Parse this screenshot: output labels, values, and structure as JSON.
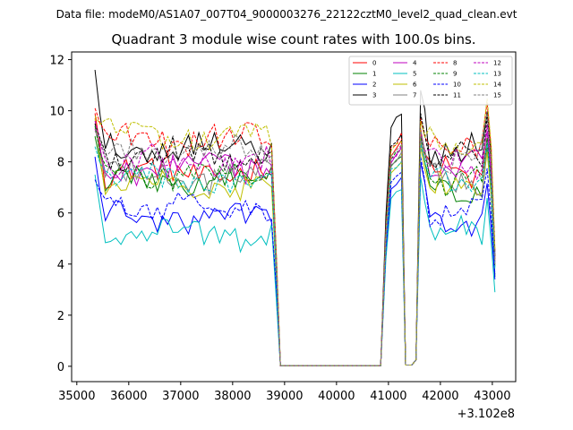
{
  "chart_data": {
    "type": "line",
    "suptitle": "Data file: modeM0/AS1A07_007T04_9000003276_22122cztM0_level2_quad_clean.evt",
    "title": "Quadrant 3 module wise count rates with 100.0s bins.",
    "xlabel": "",
    "ylabel": "",
    "x_offset_label": "+3.102e8",
    "xlim": [
      34900,
      43450
    ],
    "ylim": [
      -0.6,
      12.3
    ],
    "xticks": [
      35000,
      36000,
      37000,
      38000,
      39000,
      40000,
      41000,
      42000,
      43000
    ],
    "xtick_labels": [
      "35000",
      "36000",
      "37000",
      "38000",
      "39000",
      "40000",
      "41000",
      "42000",
      "43000"
    ],
    "yticks": [
      0,
      2,
      4,
      6,
      8,
      10,
      12
    ],
    "ytick_labels": [
      "0",
      "2",
      "4",
      "6",
      "8",
      "10",
      "12"
    ],
    "legend_position": "top-right",
    "series": [
      {
        "name": "0",
        "color": "#ff0000",
        "dashed": false,
        "start": 9.9,
        "level": 7.6,
        "end": 4.2,
        "gap_peak": 8.7,
        "hump": 9.3
      },
      {
        "name": "1",
        "color": "#008000",
        "dashed": false,
        "start": 9.0,
        "level": 7.2,
        "end": 3.5,
        "gap_peak": 8.3,
        "hump": 8.9
      },
      {
        "name": "2",
        "color": "#0000ff",
        "dashed": false,
        "start": 8.2,
        "level": 5.8,
        "end": 3.4,
        "gap_peak": 7.4,
        "hump": 8.0
      },
      {
        "name": "3",
        "color": "#000000",
        "dashed": false,
        "start": 11.6,
        "level": 8.6,
        "end": 4.3,
        "gap_peak": 9.8,
        "hump": 10.8
      },
      {
        "name": "4",
        "color": "#bf00bf",
        "dashed": false,
        "start": 9.3,
        "level": 7.8,
        "end": 4.0,
        "gap_peak": 8.4,
        "hump": 9.1
      },
      {
        "name": "5",
        "color": "#00bfbf",
        "dashed": false,
        "start": 7.5,
        "level": 5.2,
        "end": 2.9,
        "gap_peak": 7.0,
        "hump": 7.4
      },
      {
        "name": "6",
        "color": "#bfbf00",
        "dashed": false,
        "start": 9.7,
        "level": 7.0,
        "end": 4.2,
        "gap_peak": 8.0,
        "hump": 8.6
      },
      {
        "name": "7",
        "color": "#808080",
        "dashed": false,
        "start": 9.5,
        "level": 7.4,
        "end": 4.1,
        "gap_peak": 8.3,
        "hump": 8.9
      },
      {
        "name": "8",
        "color": "#ff0000",
        "dashed": true,
        "start": 10.1,
        "level": 8.9,
        "end": 4.5,
        "gap_peak": 9.0,
        "hump": 9.7
      },
      {
        "name": "9",
        "color": "#008000",
        "dashed": true,
        "start": 9.4,
        "level": 7.5,
        "end": 3.9,
        "gap_peak": 8.5,
        "hump": 9.0
      },
      {
        "name": "10",
        "color": "#0000ff",
        "dashed": true,
        "start": 7.3,
        "level": 6.3,
        "end": 3.6,
        "gap_peak": 7.6,
        "hump": 8.2
      },
      {
        "name": "11",
        "color": "#000000",
        "dashed": true,
        "start": 9.5,
        "level": 8.3,
        "end": 4.4,
        "gap_peak": 9.0,
        "hump": 9.9
      },
      {
        "name": "12",
        "color": "#bf00bf",
        "dashed": true,
        "start": 9.6,
        "level": 8.0,
        "end": 4.1,
        "gap_peak": 8.5,
        "hump": 9.2
      },
      {
        "name": "13",
        "color": "#00bfbf",
        "dashed": true,
        "start": 8.6,
        "level": 7.3,
        "end": 3.8,
        "gap_peak": 8.1,
        "hump": 8.7
      },
      {
        "name": "14",
        "color": "#bfbf00",
        "dashed": true,
        "start": 9.8,
        "level": 9.0,
        "end": 4.6,
        "gap_peak": 8.8,
        "hump": 9.6
      },
      {
        "name": "15",
        "color": "#808080",
        "dashed": true,
        "start": 9.2,
        "level": 8.4,
        "end": 4.0,
        "gap_peak": 8.6,
        "hump": 9.3
      }
    ]
  }
}
